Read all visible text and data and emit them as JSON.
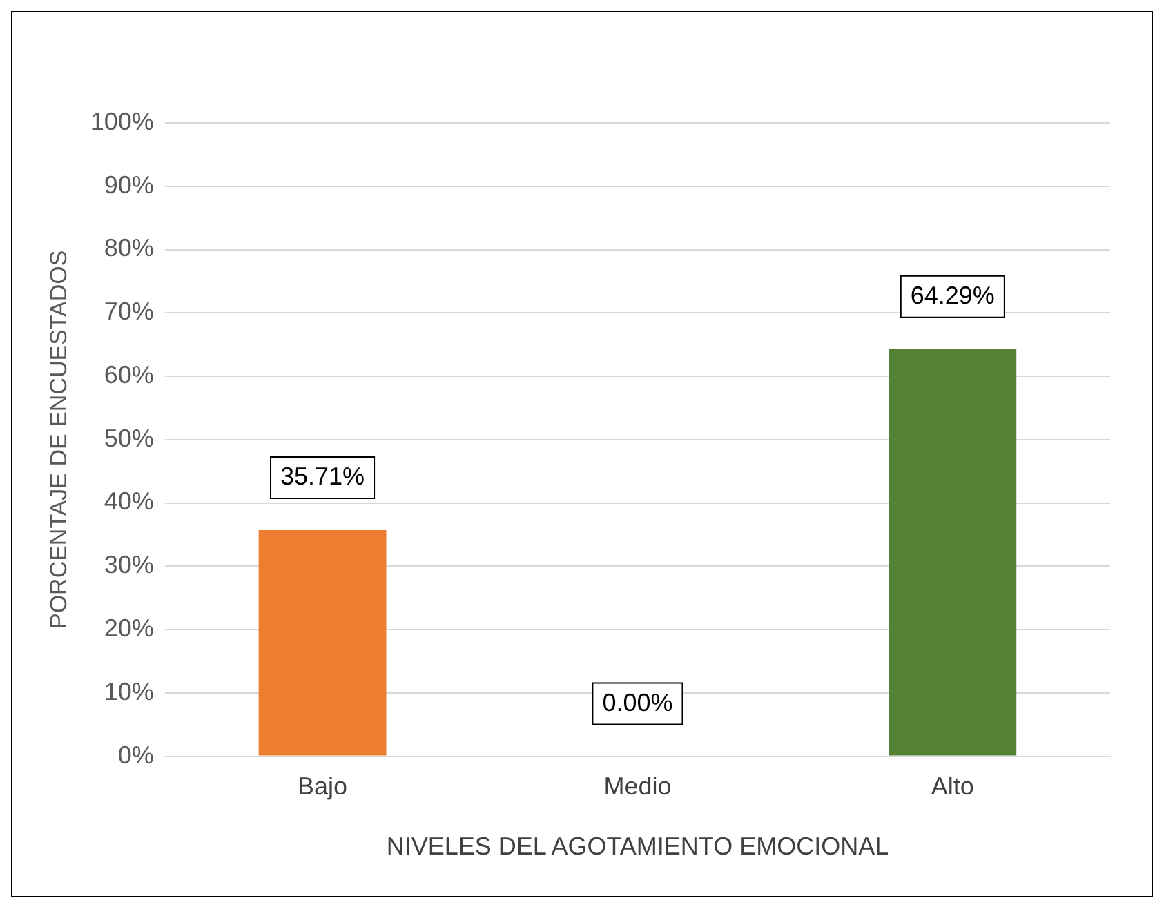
{
  "chart_data": {
    "type": "bar",
    "xlabel": "NIVELES DEL AGOTAMIENTO EMOCIONAL",
    "ylabel": "PORCENTAJE DE ENCUESTADOS",
    "categories": [
      "Bajo",
      "Medio",
      "Alto"
    ],
    "values": [
      35.71,
      0,
      64.29
    ],
    "colors": [
      "#ed7d31",
      "#2e75b6",
      "#548235"
    ],
    "value_labels": [
      "35.71%",
      "0.00%",
      "64.29%"
    ],
    "ylim": [
      0,
      100
    ],
    "yticks": [
      {
        "value": 0,
        "label": "0%"
      },
      {
        "value": 10,
        "label": "10%"
      },
      {
        "value": 20,
        "label": "20%"
      },
      {
        "value": 30,
        "label": "30%"
      },
      {
        "value": 40,
        "label": "40%"
      },
      {
        "value": 50,
        "label": "50%"
      },
      {
        "value": 60,
        "label": "60%"
      },
      {
        "value": 70,
        "label": "70%"
      },
      {
        "value": 80,
        "label": "80%"
      },
      {
        "value": 90,
        "label": "90%"
      },
      {
        "value": 100,
        "label": "100%"
      }
    ],
    "grid": "y"
  }
}
